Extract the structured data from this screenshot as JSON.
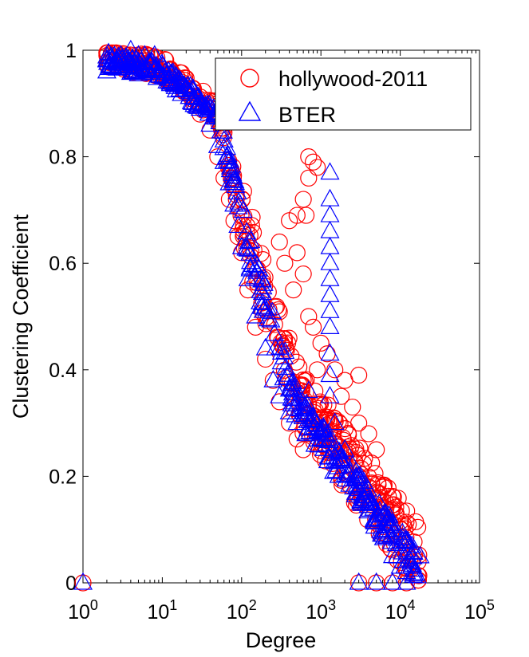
{
  "chart_data": {
    "type": "scatter",
    "title": "",
    "xlabel": "Degree",
    "ylabel": "Clustering Coefficient",
    "xscale": "log",
    "xlim_exp": [
      0,
      5
    ],
    "ylim": [
      0,
      1
    ],
    "x_ticks": [
      {
        "base": "10",
        "exp": "0"
      },
      {
        "base": "10",
        "exp": "1"
      },
      {
        "base": "10",
        "exp": "2"
      },
      {
        "base": "10",
        "exp": "3"
      },
      {
        "base": "10",
        "exp": "4"
      },
      {
        "base": "10",
        "exp": "5"
      }
    ],
    "y_ticks": [
      "0",
      "0.2",
      "0.4",
      "0.6",
      "0.8",
      "1"
    ],
    "legend": {
      "position": "top-right",
      "entries": [
        {
          "label": "hollywood-2011",
          "marker": "circle",
          "color": "#ff0000"
        },
        {
          "label": "BTER",
          "marker": "triangle",
          "color": "#0000ff"
        }
      ]
    },
    "series": [
      {
        "name": "hollywood-2011",
        "marker": "circle",
        "color": "#ff0000",
        "points": [
          [
            1,
            0
          ],
          [
            2,
            0.99
          ],
          [
            3,
            0.99
          ],
          [
            4,
            0.98
          ],
          [
            5,
            0.98
          ],
          [
            6,
            0.97
          ],
          [
            8,
            0.97
          ],
          [
            10,
            0.96
          ],
          [
            12,
            0.95
          ],
          [
            15,
            0.94
          ],
          [
            20,
            0.92
          ],
          [
            25,
            0.9
          ],
          [
            30,
            0.88
          ],
          [
            40,
            0.85
          ],
          [
            50,
            0.8
          ],
          [
            60,
            0.76
          ],
          [
            70,
            0.72
          ],
          [
            80,
            0.68
          ],
          [
            90,
            0.65
          ],
          [
            100,
            0.62
          ],
          [
            120,
            0.55
          ],
          [
            150,
            0.48
          ],
          [
            200,
            0.42
          ],
          [
            250,
            0.38
          ],
          [
            300,
            0.34
          ],
          [
            400,
            0.3
          ],
          [
            500,
            0.27
          ],
          [
            600,
            0.25
          ],
          [
            700,
            0.8
          ],
          [
            800,
            0.79
          ],
          [
            900,
            0.78
          ],
          [
            700,
            0.76
          ],
          [
            600,
            0.72
          ],
          [
            650,
            0.69
          ],
          [
            500,
            0.69
          ],
          [
            400,
            0.68
          ],
          [
            300,
            0.64
          ],
          [
            350,
            0.6
          ],
          [
            500,
            0.62
          ],
          [
            600,
            0.58
          ],
          [
            450,
            0.55
          ],
          [
            700,
            0.5
          ],
          [
            800,
            0.48
          ],
          [
            1000,
            0.45
          ],
          [
            1200,
            0.43
          ],
          [
            900,
            0.4
          ],
          [
            1500,
            0.4
          ],
          [
            2000,
            0.38
          ],
          [
            3000,
            0.39
          ],
          [
            2500,
            0.33
          ],
          [
            1800,
            0.35
          ],
          [
            1300,
            0.3
          ],
          [
            3000,
            0.3
          ],
          [
            4000,
            0.28
          ],
          [
            5000,
            0.25
          ],
          [
            2000,
            0.22
          ],
          [
            3000,
            0.2
          ],
          [
            4000,
            0.18
          ],
          [
            5000,
            0.16
          ],
          [
            6000,
            0.14
          ],
          [
            8000,
            0.1
          ],
          [
            10000,
            0.07
          ],
          [
            12000,
            0.06
          ],
          [
            15000,
            0.05
          ],
          [
            3000,
            0
          ],
          [
            5000,
            0
          ],
          [
            8000,
            0
          ],
          [
            12000,
            0
          ]
        ]
      },
      {
        "name": "BTER",
        "marker": "triangle",
        "color": "#0000ff",
        "points": [
          [
            1,
            0
          ],
          [
            2,
            0.96
          ],
          [
            3,
            0.99
          ],
          [
            4,
            1
          ],
          [
            5,
            0.99
          ],
          [
            6,
            0.99
          ],
          [
            8,
            0.99
          ],
          [
            10,
            0.97
          ],
          [
            12,
            0.96
          ],
          [
            15,
            0.95
          ],
          [
            20,
            0.93
          ],
          [
            25,
            0.91
          ],
          [
            30,
            0.89
          ],
          [
            40,
            0.86
          ],
          [
            50,
            0.82
          ],
          [
            60,
            0.79
          ],
          [
            70,
            0.75
          ],
          [
            80,
            0.71
          ],
          [
            90,
            0.67
          ],
          [
            100,
            0.63
          ],
          [
            120,
            0.57
          ],
          [
            150,
            0.5
          ],
          [
            200,
            0.44
          ],
          [
            250,
            0.38
          ],
          [
            300,
            0.35
          ],
          [
            400,
            0.32
          ],
          [
            500,
            0.3
          ],
          [
            600,
            0.33
          ],
          [
            700,
            0.36
          ],
          [
            800,
            0.31
          ],
          [
            1000,
            0.27
          ],
          [
            1300,
            0.77
          ],
          [
            1300,
            0.72
          ],
          [
            1300,
            0.69
          ],
          [
            1300,
            0.66
          ],
          [
            1300,
            0.63
          ],
          [
            1300,
            0.6
          ],
          [
            1300,
            0.57
          ],
          [
            1300,
            0.54
          ],
          [
            1300,
            0.51
          ],
          [
            1300,
            0.48
          ],
          [
            1300,
            0.43
          ],
          [
            1300,
            0.39
          ],
          [
            1300,
            0.35
          ],
          [
            1500,
            0.3
          ],
          [
            2000,
            0.25
          ],
          [
            2500,
            0.22
          ],
          [
            3000,
            0.2
          ],
          [
            4000,
            0.15
          ],
          [
            5000,
            0.12
          ],
          [
            6000,
            0.09
          ],
          [
            8000,
            0.05
          ],
          [
            10000,
            0.03
          ],
          [
            12000,
            0.02
          ],
          [
            3000,
            0
          ],
          [
            5000,
            0
          ],
          [
            8000,
            0
          ],
          [
            12000,
            0
          ]
        ]
      }
    ]
  }
}
